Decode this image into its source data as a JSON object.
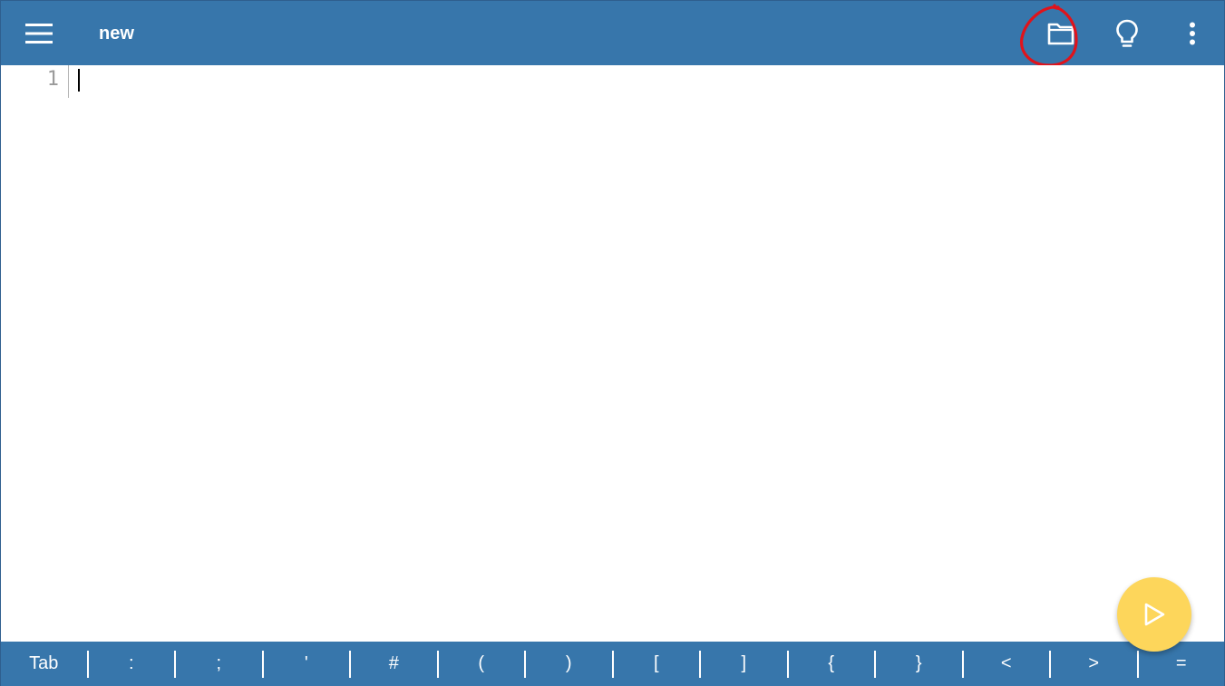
{
  "appbar": {
    "title": "new",
    "menu_icon": "hamburger-menu-icon",
    "folder_icon": "folder-icon",
    "bulb_icon": "lightbulb-icon",
    "more_icon": "more-vert-icon",
    "color": "#3776ab"
  },
  "editor": {
    "line_numbers": [
      "1"
    ],
    "content": ""
  },
  "fab": {
    "icon": "play-icon",
    "color": "#fdd65b"
  },
  "keybar": {
    "keys": [
      "Tab",
      ":",
      ";",
      "'",
      "#",
      "(",
      ")",
      "[",
      "]",
      "{",
      "}",
      "<",
      ">",
      "="
    ]
  },
  "annotation": {
    "color": "#e0131b"
  }
}
